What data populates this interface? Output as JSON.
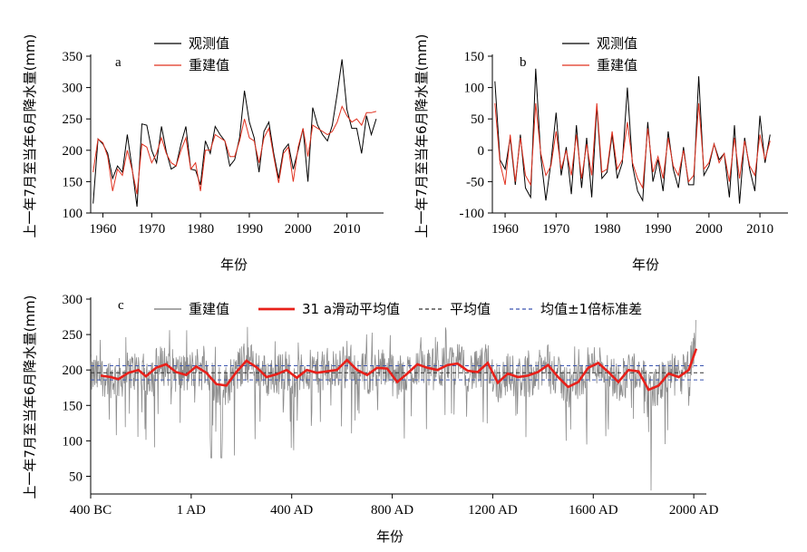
{
  "colors": {
    "observed": "#000000",
    "reconstructed": "#e0301e",
    "smooth": "#e8201a",
    "annual": "#8c8c8c",
    "mean": "#333333",
    "sd": "#3a55b0",
    "axis": "#000000"
  },
  "chart_data": [
    {
      "id": "a",
      "type": "line",
      "panel_label": "a",
      "xlabel": "年份",
      "ylabel": "上一年7月至当年6月降水量(mm)",
      "xlim": [
        1957.5,
        2017.5
      ],
      "ylim": [
        100,
        350
      ],
      "xticks": [
        1960,
        1970,
        1980,
        1990,
        2000,
        2010
      ],
      "yticks": [
        100,
        150,
        200,
        250,
        300,
        350
      ],
      "legend": [
        "观测值",
        "重建值"
      ],
      "legend_position": "top",
      "x_start": 1958,
      "series": [
        {
          "name": "观测值",
          "color_key": "observed",
          "values": [
            115,
            218,
            210,
            195,
            155,
            175,
            165,
            225,
            170,
            110,
            242,
            240,
            200,
            180,
            238,
            198,
            170,
            175,
            210,
            238,
            170,
            168,
            145,
            215,
            195,
            238,
            225,
            215,
            175,
            185,
            220,
            295,
            245,
            220,
            165,
            230,
            245,
            195,
            155,
            200,
            210,
            170,
            200,
            235,
            150,
            268,
            240,
            225,
            215,
            240,
            290,
            345,
            265,
            235,
            235,
            195,
            255,
            225,
            250
          ]
        },
        {
          "name": "重建值",
          "color_key": "reconstructed",
          "values": [
            165,
            218,
            212,
            190,
            135,
            170,
            160,
            200,
            168,
            130,
            210,
            205,
            180,
            195,
            220,
            195,
            180,
            175,
            200,
            220,
            170,
            180,
            135,
            200,
            200,
            225,
            220,
            215,
            190,
            190,
            215,
            250,
            220,
            215,
            180,
            220,
            235,
            190,
            148,
            195,
            205,
            150,
            205,
            235,
            190,
            240,
            235,
            230,
            225,
            230,
            245,
            270,
            255,
            245,
            250,
            240,
            260,
            260,
            262
          ]
        }
      ]
    },
    {
      "id": "b",
      "type": "line",
      "panel_label": "b",
      "xlabel": "年份",
      "ylabel": "上一年7月至当年6月降水量(mm)",
      "xlim": [
        1957.5,
        2015.5
      ],
      "ylim": [
        -100,
        150
      ],
      "xticks": [
        1960,
        1970,
        1980,
        1990,
        2000,
        2010
      ],
      "yticks": [
        -100,
        -50,
        0,
        50,
        100,
        150
      ],
      "legend": [
        "观测值",
        "重建值"
      ],
      "legend_position": "top",
      "x_start": 1958,
      "series": [
        {
          "name": "观测值",
          "color_key": "observed",
          "values": [
            110,
            -15,
            -30,
            20,
            -55,
            25,
            -60,
            -75,
            130,
            -10,
            -80,
            -20,
            60,
            -40,
            5,
            -70,
            40,
            -60,
            20,
            -75,
            70,
            -45,
            -35,
            25,
            -45,
            -20,
            100,
            -25,
            -65,
            -80,
            45,
            -50,
            -15,
            -65,
            30,
            -30,
            -60,
            5,
            -55,
            -55,
            118,
            -40,
            -25,
            10,
            -15,
            -5,
            -75,
            40,
            -85,
            20,
            -30,
            -65,
            55,
            -20,
            25
          ]
        },
        {
          "name": "重建值",
          "color_key": "reconstructed",
          "values": [
            75,
            -20,
            -55,
            25,
            -50,
            20,
            -40,
            -55,
            75,
            -5,
            -40,
            -25,
            30,
            -30,
            0,
            -40,
            25,
            -45,
            10,
            -40,
            75,
            -35,
            -30,
            30,
            -30,
            -15,
            45,
            -20,
            -45,
            -60,
            35,
            -35,
            -10,
            -45,
            20,
            -25,
            -40,
            0,
            -50,
            -40,
            75,
            -30,
            -20,
            10,
            -20,
            -5,
            -50,
            20,
            -45,
            15,
            -25,
            -40,
            25,
            -15,
            15
          ]
        }
      ]
    },
    {
      "id": "c",
      "type": "line",
      "panel_label": "c",
      "xlabel": "年份",
      "ylabel": "上一年7月至当年6月降水量(mm)",
      "xlim": [
        -400,
        2050
      ],
      "ylim": [
        25,
        300
      ],
      "xticks": [
        -400,
        0,
        400,
        800,
        1200,
        1600,
        2000
      ],
      "xtick_labels": [
        "400 BC",
        "1 AD",
        "400 AD",
        "800 AD",
        "1200 AD",
        "1600 AD",
        "2000 AD"
      ],
      "yticks": [
        50,
        100,
        150,
        200,
        250,
        300
      ],
      "legend": [
        "重建值",
        "31 a滑动平均值",
        "平均值",
        "均值±1倍标准差"
      ],
      "legend_position": "top",
      "mean": 196,
      "sd_band": [
        186,
        206
      ],
      "smooth": {
        "name": "31 a滑动平均值",
        "color_key": "smooth",
        "x": [
          -360,
          -320,
          -290,
          -250,
          -210,
          -180,
          -140,
          -100,
          -60,
          -20,
          20,
          60,
          100,
          140,
          180,
          220,
          260,
          300,
          340,
          380,
          420,
          460,
          500,
          540,
          580,
          620,
          660,
          700,
          740,
          780,
          820,
          860,
          900,
          940,
          980,
          1020,
          1060,
          1100,
          1140,
          1180,
          1220,
          1260,
          1300,
          1340,
          1380,
          1420,
          1460,
          1500,
          1540,
          1580,
          1620,
          1660,
          1700,
          1740,
          1780,
          1820,
          1860,
          1900,
          1940,
          1980,
          2010
        ],
        "y": [
          192,
          190,
          187,
          196,
          200,
          191,
          203,
          208,
          197,
          193,
          205,
          196,
          180,
          178,
          197,
          213,
          204,
          190,
          194,
          200,
          189,
          200,
          196,
          198,
          200,
          214,
          200,
          193,
          203,
          202,
          183,
          195,
          208,
          203,
          200,
          207,
          209,
          199,
          197,
          210,
          182,
          195,
          190,
          192,
          197,
          207,
          190,
          176,
          183,
          203,
          210,
          197,
          183,
          200,
          198,
          172,
          178,
          195,
          190,
          200,
          230
        ]
      },
      "annual": {
        "name": "重建值",
        "color_key": "annual",
        "summary": "annual values approx. 30–270 mm across 400 BC–2010 AD; notable lows ~75 mm near 80 AD, ~30 mm near 1830 AD; rising to ~270 mm after 2000 AD"
      }
    }
  ]
}
